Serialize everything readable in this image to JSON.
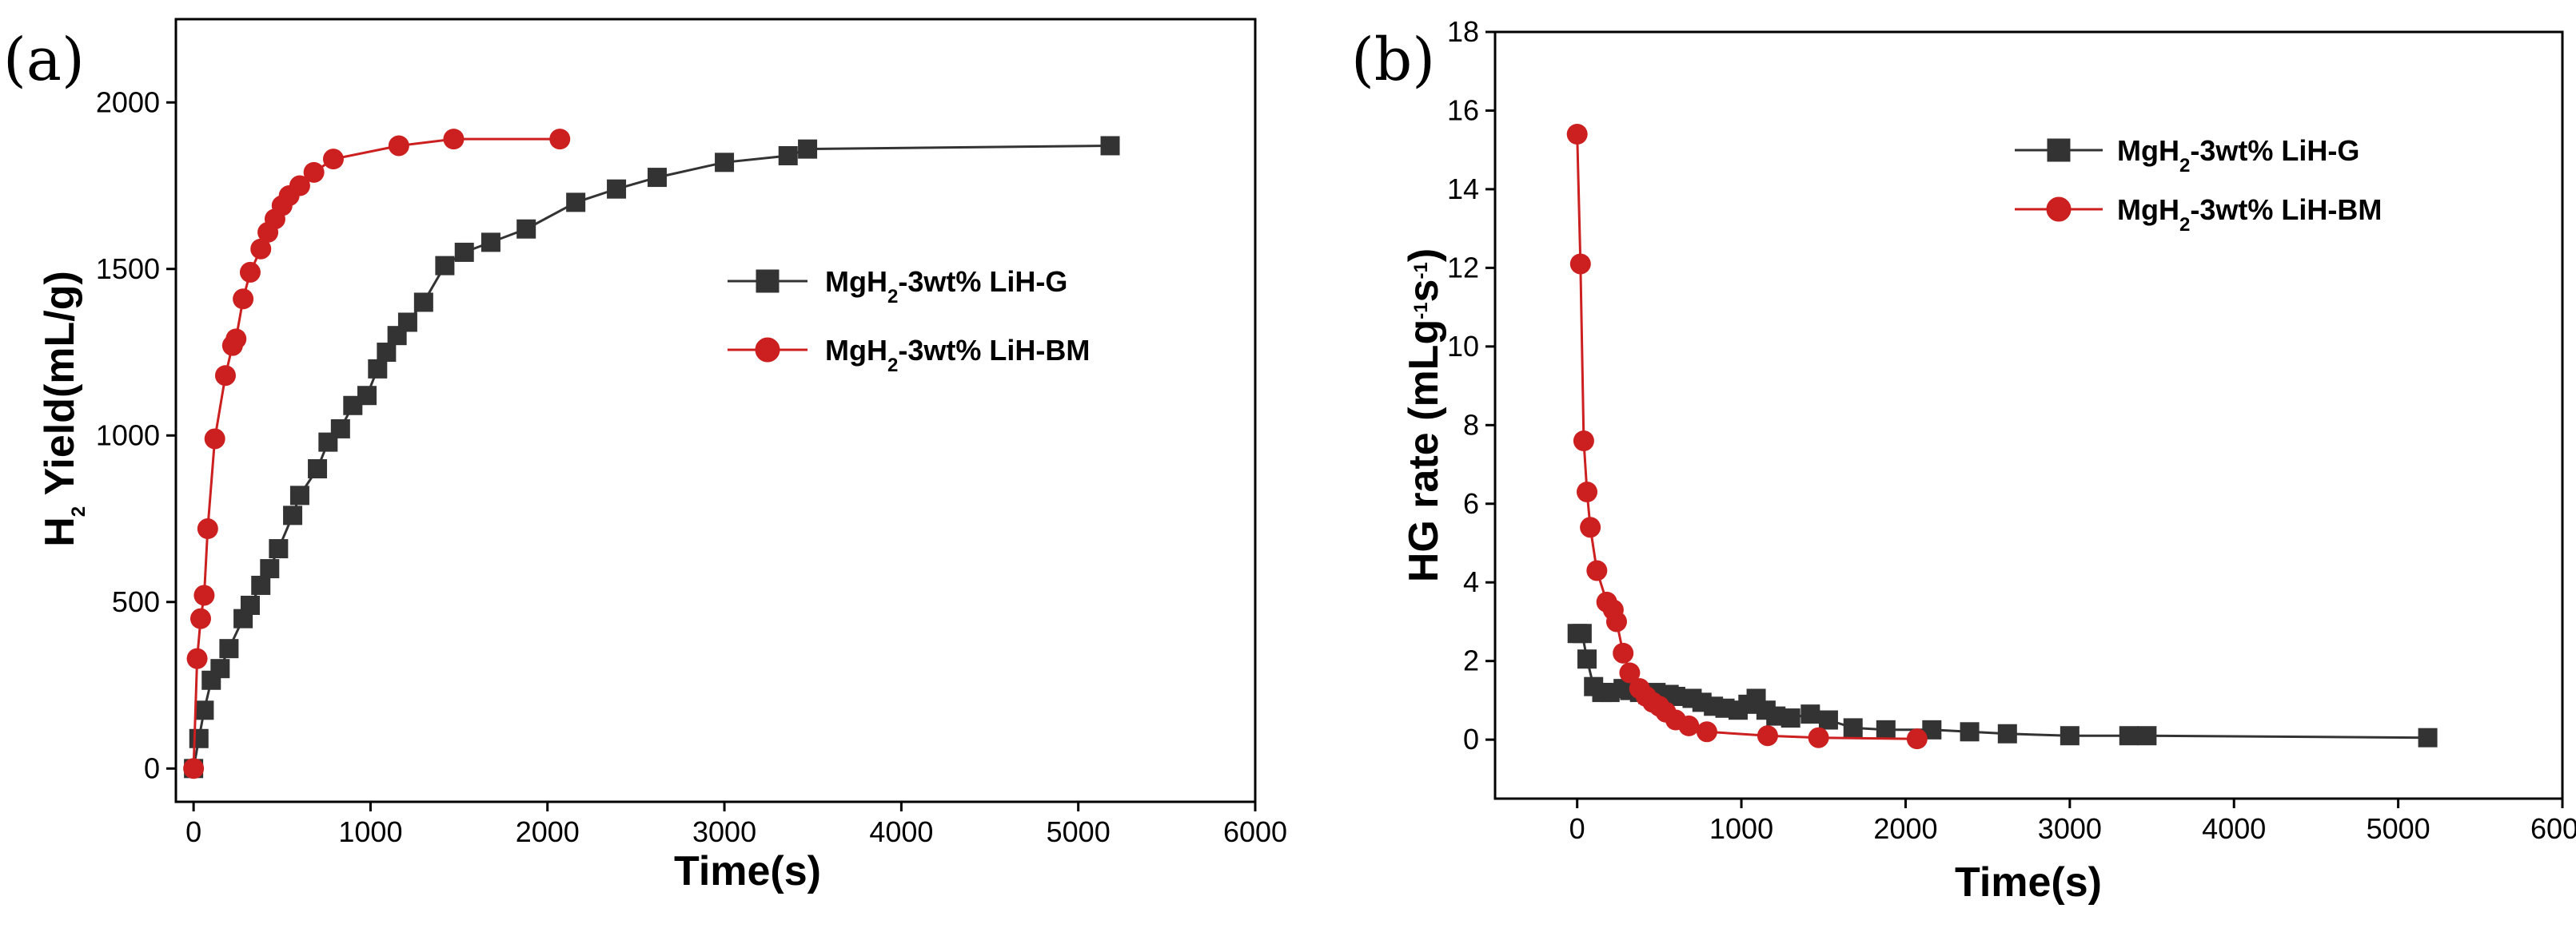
{
  "colors": {
    "series_g": "#333333",
    "series_bm": "#cc1f1f",
    "axis": "#000000"
  },
  "chart_data": [
    {
      "panel_label": "(a)",
      "type": "line",
      "xlabel": "Time(s)",
      "ylabel_parts": {
        "h": "H",
        "sub": "2",
        "rest": " Yield(mL/g)"
      },
      "xlim": [
        -100,
        6000
      ],
      "ylim": [
        -100,
        2250
      ],
      "xticks": [
        0,
        1000,
        2000,
        3000,
        4000,
        5000,
        6000
      ],
      "yticks": [
        0,
        500,
        1000,
        1500,
        2000
      ],
      "legend_position": "middle-right",
      "series": [
        {
          "key": "g",
          "marker": "square",
          "legend": {
            "pre": "MgH",
            "sub": "2",
            "post": "-3wt% LiH-G"
          },
          "x": [
            0,
            30,
            60,
            100,
            150,
            200,
            280,
            320,
            380,
            430,
            480,
            560,
            600,
            700,
            760,
            830,
            900,
            980,
            1040,
            1090,
            1150,
            1210,
            1300,
            1420,
            1530,
            1680,
            1880,
            2160,
            2390,
            2620,
            3000,
            3360,
            3470,
            5180
          ],
          "y": [
            0,
            90,
            175,
            265,
            300,
            360,
            450,
            490,
            550,
            600,
            660,
            760,
            820,
            900,
            980,
            1020,
            1090,
            1120,
            1200,
            1250,
            1300,
            1340,
            1400,
            1510,
            1550,
            1580,
            1620,
            1700,
            1740,
            1775,
            1820,
            1840,
            1860,
            1870
          ]
        },
        {
          "key": "bm",
          "marker": "circle",
          "legend": {
            "pre": "MgH",
            "sub": "2",
            "post": "-3wt% LiH-BM"
          },
          "x": [
            0,
            20,
            40,
            60,
            80,
            120,
            180,
            220,
            240,
            280,
            320,
            380,
            420,
            460,
            500,
            540,
            600,
            680,
            790,
            1160,
            1470,
            2070
          ],
          "y": [
            0,
            330,
            450,
            520,
            720,
            990,
            1180,
            1270,
            1290,
            1410,
            1490,
            1560,
            1610,
            1650,
            1690,
            1720,
            1750,
            1790,
            1830,
            1870,
            1890,
            1890
          ]
        }
      ]
    },
    {
      "panel_label": "(b)",
      "type": "line",
      "xlabel": "Time(s)",
      "ylabel_parts": {
        "pre": "HG rate (mLg",
        "sup1": "-1",
        "mid": "s",
        "sup2": "-1",
        "post": ")"
      },
      "xlim": [
        -500,
        6000
      ],
      "ylim": [
        -1.5,
        18
      ],
      "xticks": [
        0,
        1000,
        2000,
        3000,
        4000,
        5000,
        6000
      ],
      "yticks": [
        0,
        2,
        4,
        6,
        8,
        10,
        12,
        14,
        16,
        18
      ],
      "legend_position": "top-right",
      "series": [
        {
          "key": "g",
          "marker": "square",
          "legend": {
            "pre": "MgH",
            "sub": "2",
            "post": "-3wt% LiH-G"
          },
          "x": [
            0,
            30,
            60,
            100,
            150,
            200,
            280,
            320,
            380,
            430,
            480,
            560,
            600,
            700,
            760,
            830,
            900,
            980,
            1040,
            1090,
            1150,
            1210,
            1300,
            1420,
            1530,
            1680,
            1880,
            2160,
            2390,
            2620,
            3000,
            3360,
            3470,
            5180
          ],
          "y": [
            2.7,
            2.7,
            2.05,
            1.35,
            1.2,
            1.2,
            1.3,
            1.25,
            1.2,
            1.15,
            1.2,
            1.15,
            1.1,
            1.05,
            0.95,
            0.85,
            0.8,
            0.75,
            0.9,
            1.05,
            0.75,
            0.6,
            0.55,
            0.65,
            0.5,
            0.3,
            0.25,
            0.25,
            0.2,
            0.15,
            0.1,
            0.1,
            0.1,
            0.05
          ]
        },
        {
          "key": "bm",
          "marker": "circle",
          "legend": {
            "pre": "MgH",
            "sub": "2",
            "post": "-3wt% LiH-BM"
          },
          "x": [
            0,
            20,
            40,
            60,
            80,
            120,
            180,
            220,
            240,
            280,
            320,
            380,
            420,
            460,
            500,
            540,
            600,
            680,
            790,
            1160,
            1470,
            2070
          ],
          "y": [
            15.4,
            12.1,
            7.6,
            6.3,
            5.4,
            4.3,
            3.5,
            3.3,
            3.0,
            2.2,
            1.7,
            1.3,
            1.1,
            0.95,
            0.85,
            0.7,
            0.5,
            0.35,
            0.2,
            0.1,
            0.05,
            0.02
          ]
        }
      ]
    }
  ]
}
